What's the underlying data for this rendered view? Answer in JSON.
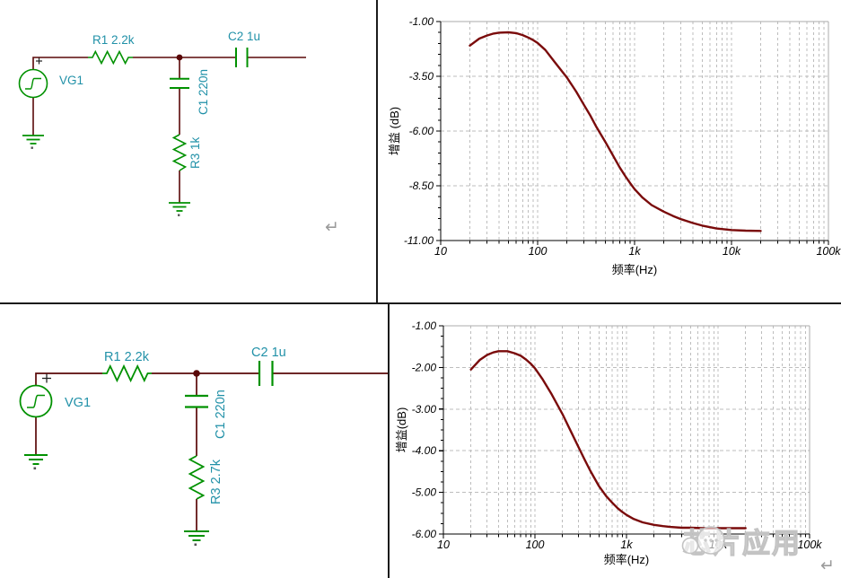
{
  "watermark": {
    "text": "芯片应用",
    "icon": "chat-bubbles-icon"
  },
  "return_marks": {
    "glyph": "↵"
  },
  "colors": {
    "wire": "#5a0808",
    "component": "#009100",
    "circuit_label": "#2191a8",
    "curve": "#7a0b0b",
    "grid": "#bdbdbd",
    "frame": "#ababab",
    "axis": "#000000",
    "watermark": "#c3c3c3"
  },
  "circuits": [
    {
      "name": "RC filter with R3 = 1k",
      "labels": {
        "source": "VG1",
        "plus": "+",
        "r1": "R1 2.2k",
        "c2": "C2 1u",
        "c1": "C1 220n",
        "r3": "R3 1k"
      }
    },
    {
      "name": "RC filter with R3 = 2.7k",
      "labels": {
        "source": "VG1",
        "plus": "+",
        "r1": "R1 2.2k",
        "c2": "C2 1u",
        "c1": "C1 220n",
        "r3": "R3 2.7k"
      }
    }
  ],
  "chart_data": [
    {
      "type": "line",
      "x_scale": "log",
      "xlabel": "频率(Hz)",
      "ylabel": "增益 (dB)",
      "xlim": [
        10,
        100000
      ],
      "ylim": [
        -11,
        -1
      ],
      "grid": "dashed",
      "legend": "none",
      "line_color": "#7a0b0b",
      "y_minor_step": 0.5,
      "xticks": {
        "values": [
          10,
          100,
          1000,
          10000,
          100000
        ],
        "labels": [
          "10",
          "100",
          "1k",
          "10k",
          "100k"
        ]
      },
      "yticks": {
        "values": [
          -1,
          -3.5,
          -6,
          -8.5,
          -11
        ],
        "labels": [
          "-1.00",
          "-3.50",
          "-6.00",
          "-8.50",
          "-11.00"
        ]
      },
      "series": [
        {
          "name": "gain",
          "x": [
            20,
            25,
            30,
            35,
            40,
            50,
            60,
            70,
            80,
            90,
            100,
            120,
            150,
            200,
            250,
            300,
            350,
            400,
            500,
            600,
            700,
            800,
            900,
            1000,
            1200,
            1500,
            2000,
            2500,
            3000,
            4000,
            5000,
            7000,
            10000,
            14000,
            20000
          ],
          "y": [
            -2.1,
            -1.78,
            -1.64,
            -1.55,
            -1.51,
            -1.49,
            -1.53,
            -1.62,
            -1.73,
            -1.85,
            -1.98,
            -2.3,
            -2.85,
            -3.55,
            -4.2,
            -4.8,
            -5.3,
            -5.78,
            -6.5,
            -7.12,
            -7.65,
            -8.05,
            -8.38,
            -8.65,
            -9.03,
            -9.38,
            -9.68,
            -9.88,
            -10.02,
            -10.2,
            -10.32,
            -10.45,
            -10.52,
            -10.55,
            -10.56
          ]
        }
      ]
    },
    {
      "type": "line",
      "x_scale": "log",
      "xlabel": "频率(Hz)",
      "ylabel": "增益(dB)",
      "xlim": [
        10,
        100000
      ],
      "ylim": [
        -6,
        -1
      ],
      "grid": "dashed",
      "legend": "none",
      "line_color": "#7a0b0b",
      "y_minor_step": 0.25,
      "xticks": {
        "values": [
          10,
          100,
          1000,
          10000,
          100000
        ],
        "labels": [
          "10",
          "100",
          "1k",
          "10k",
          "100k"
        ]
      },
      "yticks": {
        "values": [
          -1,
          -2,
          -3,
          -4,
          -5,
          -6
        ],
        "labels": [
          "-1.00",
          "-2.00",
          "-3.00",
          "-4.00",
          "-5.00",
          "-6.00"
        ]
      },
      "series": [
        {
          "name": "gain",
          "x": [
            20,
            25,
            30,
            35,
            40,
            50,
            60,
            70,
            80,
            90,
            100,
            120,
            150,
            200,
            250,
            300,
            350,
            400,
            500,
            600,
            700,
            800,
            900,
            1000,
            1200,
            1500,
            2000,
            2500,
            3000,
            4000,
            5000,
            7000,
            10000,
            14000,
            20000
          ],
          "y": [
            -2.05,
            -1.82,
            -1.7,
            -1.64,
            -1.61,
            -1.61,
            -1.66,
            -1.72,
            -1.81,
            -1.91,
            -2.02,
            -2.27,
            -2.62,
            -3.12,
            -3.56,
            -3.92,
            -4.22,
            -4.47,
            -4.85,
            -5.09,
            -5.25,
            -5.38,
            -5.47,
            -5.54,
            -5.64,
            -5.72,
            -5.78,
            -5.81,
            -5.83,
            -5.85,
            -5.85,
            -5.86,
            -5.86,
            -5.86,
            -5.86
          ]
        }
      ]
    }
  ]
}
